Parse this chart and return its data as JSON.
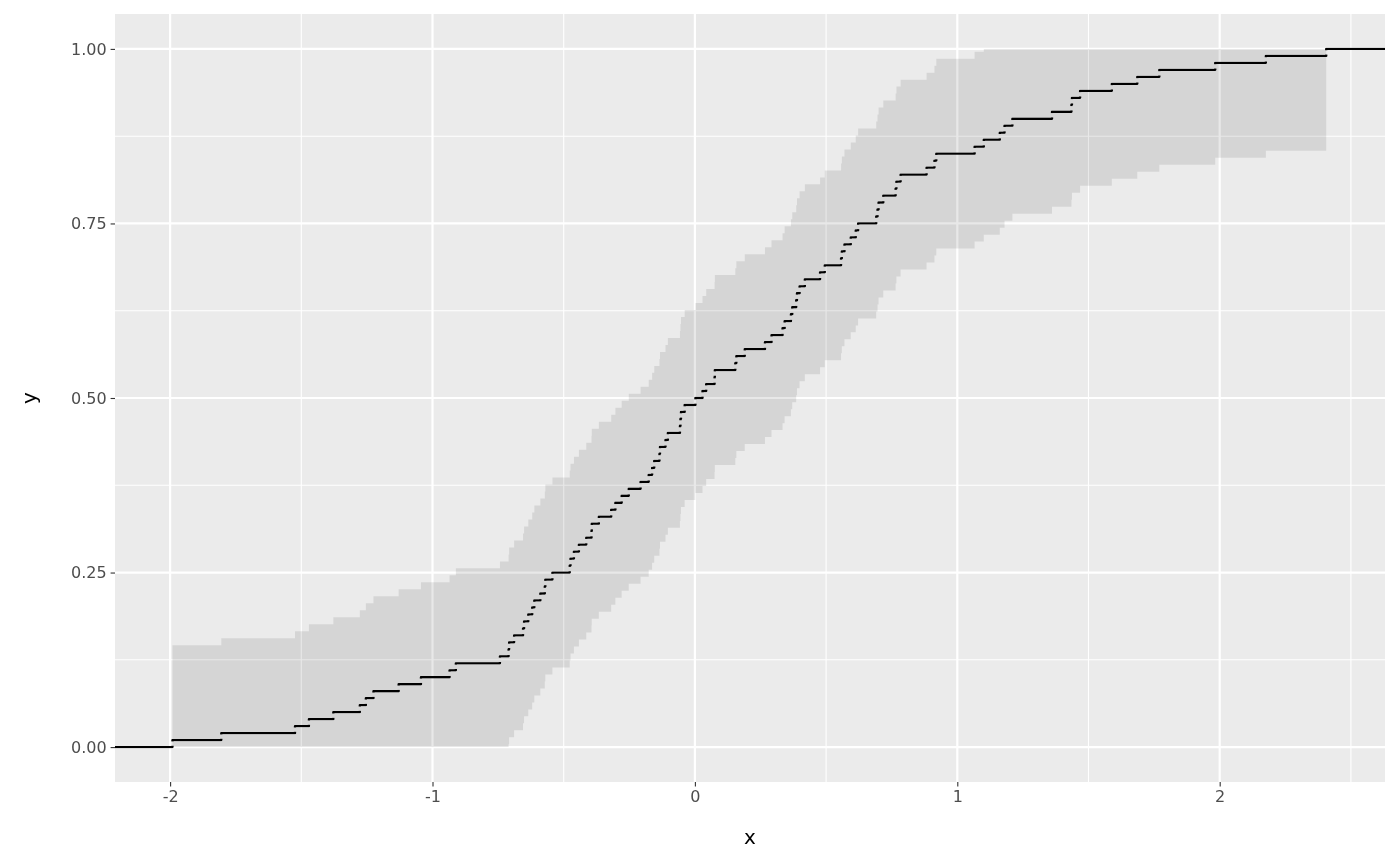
{
  "chart_data": {
    "type": "step",
    "xlabel": "x",
    "ylabel": "y",
    "xlim": [
      -2.21,
      2.63
    ],
    "xticks": [
      -2,
      -1,
      0,
      1,
      2
    ],
    "ylim": [
      -0.05,
      1.05
    ],
    "yticks": [
      {
        "value": 0,
        "label": "0.00"
      },
      {
        "value": 0.25,
        "label": "0.25"
      },
      {
        "value": 0.5,
        "label": "0.50"
      },
      {
        "value": 0.75,
        "label": "0.75"
      },
      {
        "value": 1,
        "label": "1.00"
      }
    ],
    "grid": true,
    "series": [
      {
        "color": "#000000",
        "x": [
          -2.21,
          -1.991,
          -1.805,
          -1.524,
          -1.471,
          -1.378,
          -1.277,
          -1.254,
          -1.225,
          -1.129,
          -1.044,
          -0.935,
          -0.911,
          -0.743,
          -0.71,
          -0.708,
          -0.689,
          -0.655,
          -0.651,
          -0.635,
          -0.62,
          -0.612,
          -0.589,
          -0.572,
          -0.57,
          -0.543,
          -0.477,
          -0.474,
          -0.461,
          -0.442,
          -0.414,
          -0.394,
          -0.393,
          -0.366,
          -0.319,
          -0.303,
          -0.279,
          -0.252,
          -0.207,
          -0.176,
          -0.163,
          -0.155,
          -0.135,
          -0.133,
          -0.112,
          -0.103,
          -0.057,
          -0.055,
          -0.053,
          -0.039,
          0.002,
          0.029,
          0.043,
          0.075,
          0.076,
          0.154,
          0.158,
          0.19,
          0.267,
          0.292,
          0.334,
          0.342,
          0.366,
          0.371,
          0.386,
          0.389,
          0.399,
          0.419,
          0.477,
          0.495,
          0.557,
          0.56,
          0.57,
          0.594,
          0.613,
          0.622,
          0.691,
          0.696,
          0.7,
          0.718,
          0.765,
          0.768,
          0.784,
          0.883,
          0.913,
          0.92,
          1.066,
          1.101,
          1.162,
          1.18,
          1.21,
          1.361,
          1.435,
          1.437,
          1.468,
          1.589,
          1.686,
          1.77,
          1.983,
          2.176,
          2.406,
          2.63
        ],
        "values": [
          0,
          0.01,
          0.02,
          0.03,
          0.04,
          0.05,
          0.06,
          0.07,
          0.08,
          0.09,
          0.1,
          0.11,
          0.12,
          0.13,
          0.14,
          0.15,
          0.16,
          0.17,
          0.18,
          0.19,
          0.2,
          0.21,
          0.22,
          0.23,
          0.24,
          0.25,
          0.26,
          0.27,
          0.28,
          0.29,
          0.3,
          0.31,
          0.32,
          0.33,
          0.34,
          0.35,
          0.36,
          0.37,
          0.38,
          0.39,
          0.4,
          0.41,
          0.42,
          0.43,
          0.44,
          0.45,
          0.46,
          0.47,
          0.48,
          0.49,
          0.5,
          0.51,
          0.52,
          0.53,
          0.54,
          0.55,
          0.56,
          0.57,
          0.58,
          0.59,
          0.6,
          0.61,
          0.62,
          0.63,
          0.64,
          0.65,
          0.66,
          0.67,
          0.68,
          0.69,
          0.7,
          0.71,
          0.72,
          0.73,
          0.74,
          0.75,
          0.76,
          0.77,
          0.78,
          0.79,
          0.8,
          0.81,
          0.82,
          0.83,
          0.84,
          0.85,
          0.86,
          0.87,
          0.88,
          0.89,
          0.9,
          0.91,
          0.92,
          0.93,
          0.94,
          0.95,
          0.96,
          0.97,
          0.98,
          0.99,
          1,
          1
        ],
        "lower": [
          null,
          0,
          0,
          0,
          0,
          0,
          0,
          0,
          0,
          0,
          0,
          0,
          0,
          0,
          0.004,
          0.014,
          0.024,
          0.034,
          0.044,
          0.054,
          0.064,
          0.074,
          0.084,
          0.094,
          0.104,
          0.114,
          0.124,
          0.134,
          0.144,
          0.154,
          0.164,
          0.174,
          0.184,
          0.194,
          0.204,
          0.214,
          0.224,
          0.234,
          0.244,
          0.254,
          0.264,
          0.274,
          0.284,
          0.294,
          0.304,
          0.314,
          0.324,
          0.334,
          0.344,
          0.354,
          0.364,
          0.374,
          0.384,
          0.394,
          0.404,
          0.414,
          0.424,
          0.434,
          0.444,
          0.454,
          0.464,
          0.474,
          0.484,
          0.494,
          0.504,
          0.514,
          0.524,
          0.534,
          0.544,
          0.554,
          0.564,
          0.574,
          0.584,
          0.594,
          0.604,
          0.614,
          0.624,
          0.634,
          0.644,
          0.654,
          0.664,
          0.674,
          0.684,
          0.694,
          0.704,
          0.714,
          0.724,
          0.734,
          0.744,
          0.754,
          0.764,
          0.774,
          0.784,
          0.794,
          0.804,
          0.814,
          0.824,
          0.834,
          0.844,
          0.854,
          0.864,
          null
        ],
        "upper": [
          null,
          0.146,
          0.156,
          0.166,
          0.176,
          0.186,
          0.196,
          0.206,
          0.216,
          0.226,
          0.236,
          0.246,
          0.256,
          0.266,
          0.276,
          0.286,
          0.296,
          0.306,
          0.316,
          0.326,
          0.336,
          0.346,
          0.356,
          0.366,
          0.376,
          0.386,
          0.396,
          0.406,
          0.416,
          0.426,
          0.436,
          0.446,
          0.456,
          0.466,
          0.476,
          0.486,
          0.496,
          0.506,
          0.516,
          0.526,
          0.536,
          0.546,
          0.556,
          0.566,
          0.576,
          0.586,
          0.596,
          0.606,
          0.616,
          0.626,
          0.636,
          0.646,
          0.656,
          0.666,
          0.676,
          0.686,
          0.696,
          0.706,
          0.716,
          0.726,
          0.736,
          0.746,
          0.756,
          0.766,
          0.776,
          0.786,
          0.796,
          0.806,
          0.816,
          0.826,
          0.836,
          0.846,
          0.856,
          0.866,
          0.876,
          0.886,
          0.896,
          0.906,
          0.916,
          0.926,
          0.936,
          0.946,
          0.956,
          0.966,
          0.976,
          0.986,
          0.996,
          1,
          1,
          1,
          1,
          1,
          1,
          1,
          1,
          1,
          1,
          1,
          1,
          1,
          1,
          null
        ]
      }
    ]
  }
}
